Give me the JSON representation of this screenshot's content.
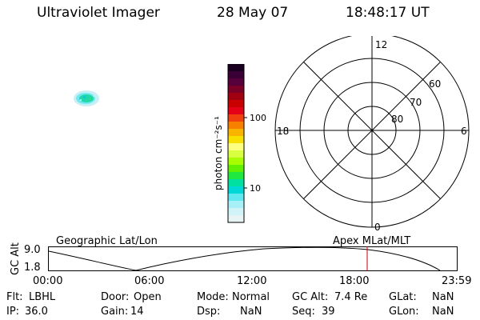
{
  "header": {
    "instrument": "Ultraviolet Imager",
    "date": "28 May 07",
    "time": "18:48:17 UT"
  },
  "colorbar": {
    "label": "photon cm⁻²s⁻¹",
    "tick_100": "100",
    "tick_10": "10",
    "colors": [
      "#1a0020",
      "#3a0035",
      "#55003a",
      "#7a0028",
      "#a00010",
      "#c80000",
      "#e40016",
      "#f04010",
      "#f78000",
      "#f9b400",
      "#f7e000",
      "#ffff80",
      "#d8ff40",
      "#a8ff00",
      "#60f000",
      "#20e840",
      "#00e0a0",
      "#00d8d8",
      "#60e8f0",
      "#a8f0f8",
      "#d0f4f8",
      "#e8f4f4"
    ]
  },
  "polar": {
    "labels": {
      "top": "12",
      "bottom": "0",
      "left": "18",
      "right": "6",
      "ring_60": "60",
      "ring_70": "70",
      "ring_80": "80"
    }
  },
  "timeline": {
    "left_title": "Geographic Lat/Lon",
    "right_title": "Apex MLat/MLT",
    "y_axis_label": "GC Alt",
    "y_top": "9.0",
    "y_bottom": "1.8",
    "x_ticks": [
      "00:00",
      "06:00",
      "12:00",
      "18:00",
      "23:59"
    ]
  },
  "status": {
    "row1": [
      {
        "key": "Flt:",
        "value": "LBHL"
      },
      {
        "key": "Door:",
        "value": "Open"
      },
      {
        "key": "Mode:",
        "value": "Normal"
      },
      {
        "key": "GC Alt:",
        "value": "7.4 Re"
      },
      {
        "key": "GLat:",
        "value": "NaN"
      }
    ],
    "row2": [
      {
        "key": "IP:",
        "value": "36.0"
      },
      {
        "key": "Gain:",
        "value": "14"
      },
      {
        "key": "Dsp:",
        "value": "NaN"
      },
      {
        "key": "Seq:",
        "value": "39"
      },
      {
        "key": "GLon:",
        "value": "NaN"
      }
    ]
  }
}
